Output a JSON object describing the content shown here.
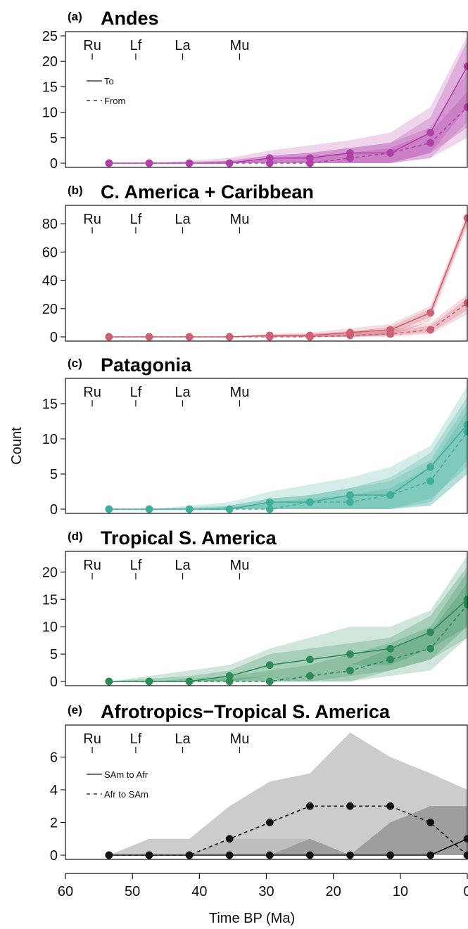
{
  "ylabel": "Count",
  "xlabel": "Time BP (Ma)",
  "epochs": [
    "Ru",
    "Lf",
    "La",
    "Mu"
  ],
  "xticks": [
    60,
    50,
    40,
    30,
    20,
    10,
    0
  ],
  "chart_data": [
    {
      "type": "line",
      "letter": "(a)",
      "title": "Andes",
      "color": "#b040a8",
      "ylim": [
        0,
        25
      ],
      "yticks": [
        0,
        5,
        10,
        15,
        20,
        25
      ],
      "legend": [
        "To",
        "From"
      ],
      "x": [
        53.5,
        47.5,
        41.5,
        35.5,
        29.5,
        23.5,
        17.5,
        11.5,
        5.5,
        0
      ],
      "series": [
        {
          "name": "To",
          "style": "solid",
          "values": [
            0,
            0,
            0,
            0,
            1,
            1,
            2,
            2,
            6,
            19
          ],
          "band_outer": [
            [
              0,
              0
            ],
            [
              0,
              0
            ],
            [
              0,
              0.5
            ],
            [
              0,
              1
            ],
            [
              0,
              2.5
            ],
            [
              0,
              3.5
            ],
            [
              0,
              4.5
            ],
            [
              0,
              6
            ],
            [
              1,
              11
            ],
            [
              8,
              25
            ]
          ],
          "band_inner": [
            [
              0,
              0
            ],
            [
              0,
              0
            ],
            [
              0,
              0
            ],
            [
              0,
              0.5
            ],
            [
              0,
              1.5
            ],
            [
              0,
              2
            ],
            [
              0,
              3
            ],
            [
              0,
              4
            ],
            [
              2,
              9
            ],
            [
              11,
              24
            ]
          ]
        },
        {
          "name": "From",
          "style": "dashed",
          "values": [
            0,
            0,
            0,
            0,
            0,
            0,
            1,
            2,
            4,
            11
          ],
          "band_outer": [
            [
              0,
              0
            ],
            [
              0,
              0
            ],
            [
              0,
              0.3
            ],
            [
              0,
              0.5
            ],
            [
              0,
              1.5
            ],
            [
              0,
              2
            ],
            [
              0,
              3
            ],
            [
              0,
              4
            ],
            [
              1,
              7
            ],
            [
              5,
              18
            ]
          ],
          "band_inner": [
            [
              0,
              0
            ],
            [
              0,
              0
            ],
            [
              0,
              0
            ],
            [
              0,
              0.3
            ],
            [
              0,
              1
            ],
            [
              0,
              1.5
            ],
            [
              0,
              2
            ],
            [
              0,
              3
            ],
            [
              2,
              6
            ],
            [
              7,
              14
            ]
          ]
        }
      ]
    },
    {
      "type": "line",
      "letter": "(b)",
      "title": "C. America + Caribbean",
      "color": "#cf5f72",
      "ylim": [
        0,
        90
      ],
      "yticks": [
        0,
        20,
        40,
        60,
        80
      ],
      "legend": [],
      "x": [
        53.5,
        47.5,
        41.5,
        35.5,
        29.5,
        23.5,
        17.5,
        11.5,
        5.5,
        0
      ],
      "series": [
        {
          "name": "",
          "style": "solid",
          "values": [
            0,
            0,
            0,
            0,
            1,
            1,
            3,
            5,
            17,
            84
          ],
          "band_outer": [
            [
              0,
              0
            ],
            [
              0,
              0
            ],
            [
              0,
              0
            ],
            [
              0,
              0.5
            ],
            [
              0,
              2
            ],
            [
              0,
              3
            ],
            [
              0,
              6
            ],
            [
              1,
              9
            ],
            [
              11,
              22
            ],
            [
              78,
              88
            ]
          ],
          "band_inner": [
            [
              0,
              0
            ],
            [
              0,
              0
            ],
            [
              0,
              0
            ],
            [
              0,
              0
            ],
            [
              0,
              1.5
            ],
            [
              0,
              2
            ],
            [
              0,
              4
            ],
            [
              2,
              7
            ],
            [
              14,
              20
            ],
            [
              80,
              86
            ]
          ]
        },
        {
          "name": "",
          "style": "dashed",
          "values": [
            0,
            0,
            0,
            0,
            0,
            0,
            1,
            2,
            5,
            24
          ],
          "band_outer": [
            [
              0,
              0
            ],
            [
              0,
              0
            ],
            [
              0,
              0
            ],
            [
              0,
              0.3
            ],
            [
              0,
              1
            ],
            [
              0,
              2
            ],
            [
              0,
              3
            ],
            [
              0,
              5
            ],
            [
              2,
              10
            ],
            [
              16,
              30
            ]
          ],
          "band_inner": [
            [
              0,
              0
            ],
            [
              0,
              0
            ],
            [
              0,
              0
            ],
            [
              0,
              0
            ],
            [
              0,
              0.5
            ],
            [
              0,
              1
            ],
            [
              0,
              2
            ],
            [
              1,
              4
            ],
            [
              3,
              8
            ],
            [
              19,
              27
            ]
          ]
        }
      ]
    },
    {
      "type": "line",
      "letter": "(c)",
      "title": "Patagonia",
      "color": "#3fae9a",
      "ylim": [
        0,
        18
      ],
      "yticks": [
        0,
        5,
        10,
        15
      ],
      "legend": [],
      "x": [
        53.5,
        47.5,
        41.5,
        35.5,
        29.5,
        23.5,
        17.5,
        11.5,
        5.5,
        0
      ],
      "series": [
        {
          "name": "",
          "style": "solid",
          "values": [
            0,
            0,
            0,
            0,
            1,
            1,
            2,
            2,
            6,
            12
          ],
          "band_outer": [
            [
              0,
              0
            ],
            [
              0,
              0
            ],
            [
              0,
              0.5
            ],
            [
              0,
              1
            ],
            [
              0,
              2.5
            ],
            [
              0,
              3.5
            ],
            [
              0,
              4.5
            ],
            [
              0,
              6
            ],
            [
              0.5,
              9
            ],
            [
              5,
              17.5
            ]
          ],
          "band_inner": [
            [
              0,
              0
            ],
            [
              0,
              0
            ],
            [
              0,
              0
            ],
            [
              0,
              0.5
            ],
            [
              0,
              1.5
            ],
            [
              0,
              2
            ],
            [
              0,
              3
            ],
            [
              0,
              4.5
            ],
            [
              1.5,
              8
            ],
            [
              6,
              16
            ]
          ]
        },
        {
          "name": "",
          "style": "dashed",
          "values": [
            0,
            0,
            0,
            0,
            0,
            1,
            1,
            2,
            4,
            11
          ],
          "band_outer": [
            [
              0,
              0
            ],
            [
              0,
              0
            ],
            [
              0,
              0.3
            ],
            [
              0,
              0.5
            ],
            [
              0,
              1.5
            ],
            [
              0,
              2
            ],
            [
              0,
              3
            ],
            [
              0,
              4
            ],
            [
              0.5,
              7
            ],
            [
              5,
              15
            ]
          ],
          "band_inner": [
            [
              0,
              0
            ],
            [
              0,
              0
            ],
            [
              0,
              0
            ],
            [
              0,
              0.3
            ],
            [
              0,
              1
            ],
            [
              0,
              1.5
            ],
            [
              0,
              2
            ],
            [
              0,
              3
            ],
            [
              1,
              6
            ],
            [
              7,
              14
            ]
          ]
        }
      ]
    },
    {
      "type": "line",
      "letter": "(d)",
      "title": "Tropical S. America",
      "color": "#2e8b57",
      "ylim": [
        0,
        23
      ],
      "yticks": [
        0,
        5,
        10,
        15,
        20
      ],
      "legend": [],
      "x": [
        53.5,
        47.5,
        41.5,
        35.5,
        29.5,
        23.5,
        17.5,
        11.5,
        5.5,
        0
      ],
      "series": [
        {
          "name": "",
          "style": "solid",
          "values": [
            0,
            0,
            0,
            1,
            3,
            4,
            5,
            6,
            9,
            15
          ],
          "band_outer": [
            [
              0,
              0
            ],
            [
              0,
              1
            ],
            [
              0,
              2
            ],
            [
              0,
              3
            ],
            [
              0,
              6
            ],
            [
              0,
              8
            ],
            [
              1,
              10
            ],
            [
              2,
              10
            ],
            [
              4,
              13
            ],
            [
              8,
              23
            ]
          ],
          "band_inner": [
            [
              0,
              0
            ],
            [
              0,
              0.5
            ],
            [
              0,
              1
            ],
            [
              0,
              2
            ],
            [
              1,
              5
            ],
            [
              2,
              6
            ],
            [
              3,
              7
            ],
            [
              3,
              8
            ],
            [
              6,
              12
            ],
            [
              10,
              21
            ]
          ]
        },
        {
          "name": "",
          "style": "dashed",
          "values": [
            0,
            0,
            0,
            0,
            0,
            1,
            2,
            4,
            6,
            14
          ],
          "band_outer": [
            [
              0,
              0
            ],
            [
              0,
              0
            ],
            [
              0,
              0.5
            ],
            [
              0,
              1
            ],
            [
              0,
              2
            ],
            [
              0,
              3
            ],
            [
              0,
              5
            ],
            [
              1,
              7
            ],
            [
              2,
              10
            ],
            [
              8,
              20
            ]
          ],
          "band_inner": [
            [
              0,
              0
            ],
            [
              0,
              0
            ],
            [
              0,
              0
            ],
            [
              0,
              0.5
            ],
            [
              0,
              1
            ],
            [
              0,
              2
            ],
            [
              0,
              3
            ],
            [
              2,
              6
            ],
            [
              4,
              9
            ],
            [
              10,
              18
            ]
          ]
        }
      ]
    },
    {
      "type": "line",
      "letter": "(e)",
      "title": "Afrotropics−Tropical S. America",
      "color": "#111111",
      "ylim": [
        0,
        7.7
      ],
      "yticks": [
        0,
        2,
        4,
        6
      ],
      "legend": [
        "SAm to Afr",
        "Afr to SAm"
      ],
      "x": [
        53.5,
        47.5,
        41.5,
        35.5,
        29.5,
        23.5,
        17.5,
        11.5,
        5.5,
        0
      ],
      "series": [
        {
          "name": "SAm to Afr",
          "style": "solid",
          "values": [
            0,
            0,
            0,
            0,
            0,
            0,
            0,
            0,
            0,
            1
          ],
          "band_outer": [
            [
              0,
              0
            ],
            [
              0,
              0
            ],
            [
              0,
              0
            ],
            [
              0,
              0
            ],
            [
              0,
              0
            ],
            [
              0,
              1
            ],
            [
              0,
              0
            ],
            [
              0,
              2
            ],
            [
              0,
              3
            ],
            [
              0,
              3
            ]
          ],
          "band_inner": [
            [
              0,
              0
            ],
            [
              0,
              0
            ],
            [
              0,
              0
            ],
            [
              0,
              1
            ],
            [
              0,
              1
            ],
            [
              0,
              1
            ],
            [
              0,
              0
            ],
            [
              0,
              2
            ],
            [
              0,
              3
            ],
            [
              0,
              3
            ]
          ]
        },
        {
          "name": "Afr to SAm",
          "style": "dashed",
          "values": [
            0,
            0,
            0,
            1,
            2,
            3,
            3,
            3,
            2,
            0
          ],
          "band_outer": [
            [
              0,
              0
            ],
            [
              0,
              1
            ],
            [
              0,
              1
            ],
            [
              0,
              3
            ],
            [
              0,
              4.5
            ],
            [
              0,
              5
            ],
            [
              0,
              7.5
            ],
            [
              0,
              6
            ],
            [
              0,
              5
            ],
            [
              0,
              4
            ]
          ],
          "band_inner": [
            [
              0,
              0
            ],
            [
              0,
              0
            ],
            [
              0,
              0
            ],
            [
              0,
              0
            ],
            [
              0,
              0
            ],
            [
              0,
              0
            ],
            [
              0,
              0
            ],
            [
              0,
              0
            ],
            [
              0,
              0
            ],
            [
              0,
              0
            ]
          ]
        }
      ]
    }
  ]
}
